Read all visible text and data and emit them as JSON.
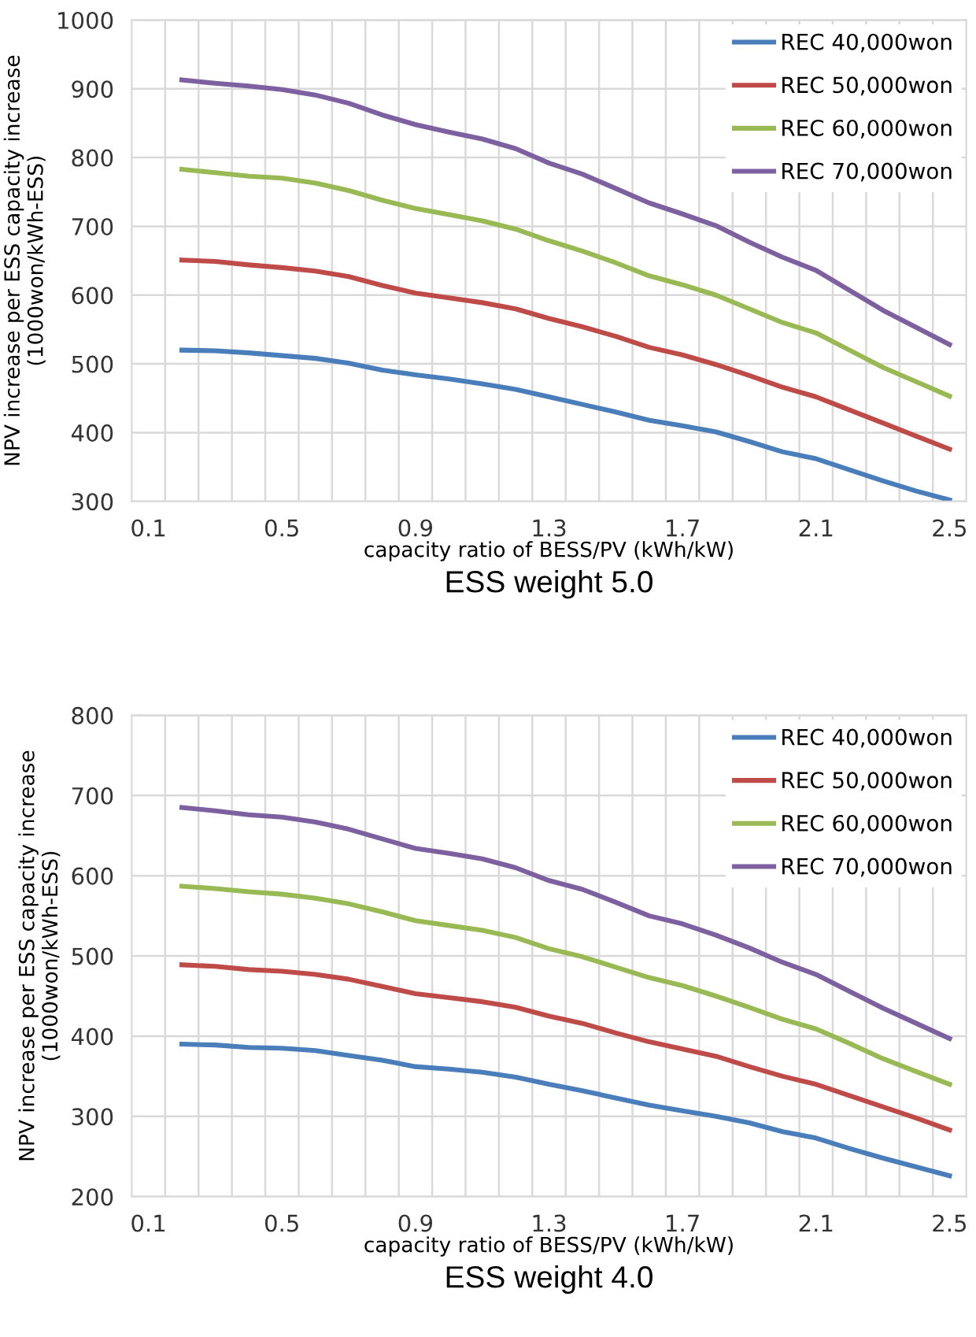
{
  "chart_data": [
    {
      "type": "line",
      "title": "ESS weight 5.0",
      "xlabel": "capacity ratio of BESS/PV (kWh/kW)",
      "ylabel": "NPV increase per ESS capacity increase\n(1000won/kWh-ESS)",
      "categories": [
        "0.1",
        null,
        null,
        null,
        "0.5",
        null,
        null,
        null,
        "0.9",
        null,
        null,
        null,
        "1.3",
        null,
        null,
        null,
        "1.7",
        null,
        null,
        null,
        "2.1",
        null,
        null,
        null,
        "2.5"
      ],
      "ylim": [
        300,
        1000
      ],
      "yticks": [
        300,
        400,
        500,
        600,
        700,
        800,
        900,
        1000
      ],
      "grid": true,
      "legend": "top right",
      "marker": "none",
      "line_style": "solid",
      "series": [
        {
          "name": "REC 40,000won",
          "color": "#4a7ebb",
          "values": [
            null,
            520,
            519,
            516,
            512,
            508,
            501,
            491,
            484,
            478,
            471,
            463,
            452,
            441,
            430,
            418,
            410,
            401,
            387,
            372,
            362,
            346,
            330,
            315,
            302
          ]
        },
        {
          "name": "REC 50,000won",
          "color": "#be4b48",
          "values": [
            null,
            651,
            649,
            644,
            640,
            635,
            627,
            614,
            603,
            596,
            589,
            580,
            566,
            554,
            540,
            524,
            513,
            499,
            483,
            466,
            452,
            433,
            414,
            395,
            376
          ]
        },
        {
          "name": "REC 60,000won",
          "color": "#98b954",
          "values": [
            null,
            783,
            778,
            773,
            770,
            763,
            752,
            738,
            726,
            717,
            708,
            696,
            679,
            664,
            647,
            628,
            615,
            600,
            580,
            560,
            545,
            520,
            495,
            474,
            453
          ]
        },
        {
          "name": "REC 70,000won",
          "color": "#7d60a0",
          "values": [
            null,
            913,
            908,
            904,
            899,
            891,
            879,
            862,
            848,
            837,
            827,
            813,
            792,
            776,
            755,
            734,
            718,
            701,
            677,
            655,
            636,
            607,
            578,
            553,
            528
          ]
        }
      ]
    },
    {
      "type": "line",
      "title": "ESS weight 4.0",
      "xlabel": "capacity ratio of BESS/PV (kWh/kW)",
      "ylabel": "NPV increase per ESS capacity increase\n(1000won/kWh-ESS)",
      "categories": [
        "0.1",
        null,
        null,
        null,
        "0.5",
        null,
        null,
        null,
        "0.9",
        null,
        null,
        null,
        "1.3",
        null,
        null,
        null,
        "1.7",
        null,
        null,
        null,
        "2.1",
        null,
        null,
        null,
        "2.5"
      ],
      "ylim": [
        200,
        800
      ],
      "yticks": [
        200,
        300,
        400,
        500,
        600,
        700,
        800
      ],
      "grid": true,
      "legend": "top right",
      "marker": "none",
      "line_style": "solid",
      "series": [
        {
          "name": "REC 40,000won",
          "color": "#4a7ebb",
          "values": [
            null,
            390,
            389,
            386,
            385,
            382,
            376,
            370,
            362,
            359,
            355,
            349,
            340,
            332,
            323,
            314,
            307,
            300,
            292,
            281,
            273,
            260,
            248,
            237,
            226
          ]
        },
        {
          "name": "REC 50,000won",
          "color": "#be4b48",
          "values": [
            null,
            489,
            487,
            483,
            481,
            477,
            471,
            462,
            453,
            448,
            443,
            436,
            425,
            416,
            404,
            393,
            384,
            375,
            362,
            350,
            340,
            326,
            312,
            298,
            283
          ]
        },
        {
          "name": "REC 60,000won",
          "color": "#98b954",
          "values": [
            null,
            587,
            584,
            580,
            577,
            572,
            565,
            555,
            544,
            538,
            532,
            523,
            509,
            499,
            486,
            473,
            463,
            450,
            436,
            421,
            409,
            391,
            372,
            356,
            340
          ]
        },
        {
          "name": "REC 70,000won",
          "color": "#7d60a0",
          "values": [
            null,
            685,
            681,
            676,
            673,
            667,
            658,
            646,
            634,
            628,
            621,
            610,
            594,
            583,
            567,
            550,
            540,
            526,
            510,
            492,
            477,
            456,
            435,
            416,
            397
          ]
        }
      ]
    }
  ]
}
